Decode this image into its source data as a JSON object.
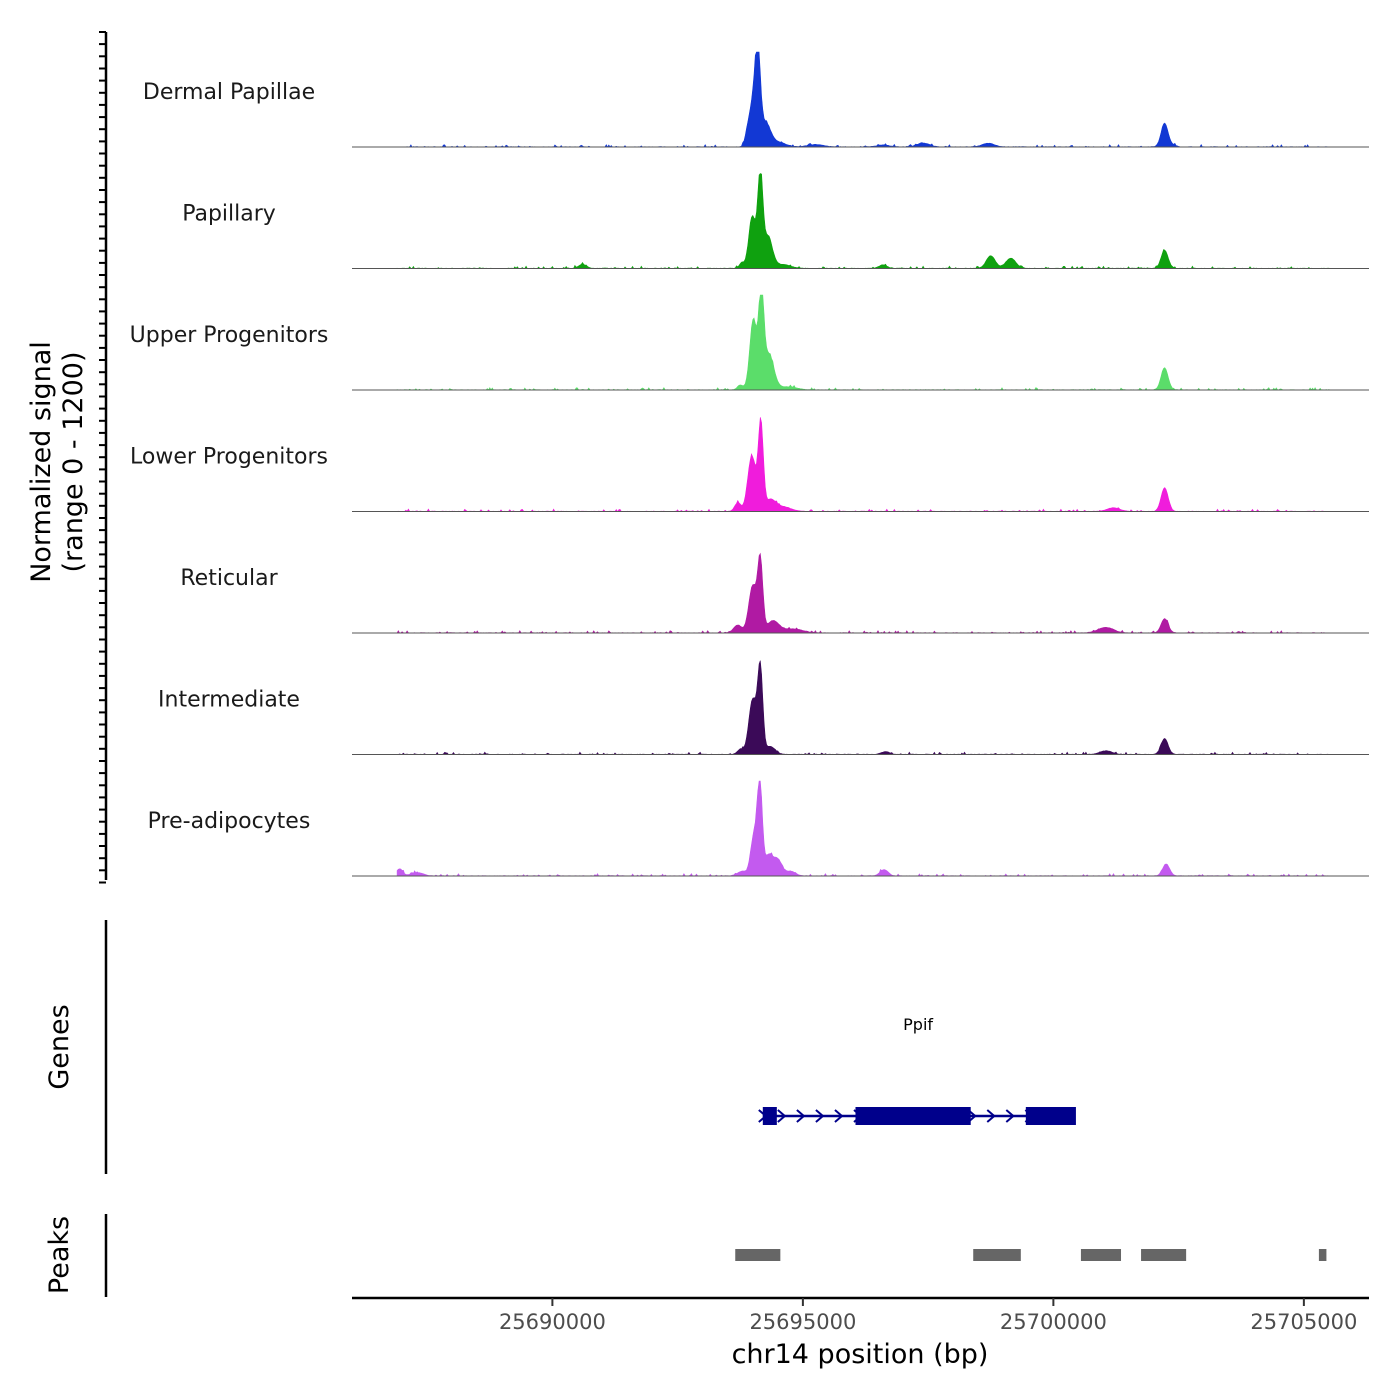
{
  "chart_data": {
    "type": "area",
    "title": "",
    "region": {
      "chrom": "chr14",
      "start": 25686000,
      "end": 25706300
    },
    "ylabel": "Normalized signal",
    "ylabel_range": "(range 0 - 1200)",
    "ylim": [
      0,
      1200
    ],
    "xlabel": "chr14 position (bp)",
    "x_ticks": [
      25690000,
      25695000,
      25700000,
      25705000
    ],
    "x_tick_labels": [
      "25690000",
      "25695000",
      "25700000",
      "25705000"
    ],
    "genes_label": "Genes",
    "peaks_label": "Peaks",
    "tracks": [
      {
        "name": "Dermal Papillae",
        "color": "#1238d4",
        "peaks": [
          [
            25693880,
            65,
            40
          ],
          [
            25694000,
            560,
            80
          ],
          [
            25694100,
            1080,
            50
          ],
          [
            25694250,
            300,
            100
          ],
          [
            25694500,
            60,
            150
          ],
          [
            25695250,
            30,
            150
          ],
          [
            25696600,
            25,
            120
          ],
          [
            25697400,
            50,
            120
          ],
          [
            25698700,
            45,
            120
          ],
          [
            25702220,
            300,
            70
          ],
          [
            25702400,
            20,
            60
          ]
        ]
      },
      {
        "name": "Papillary",
        "color": "#0fa10f",
        "peaks": [
          [
            25690600,
            50,
            80
          ],
          [
            25693780,
            70,
            50
          ],
          [
            25693990,
            660,
            70
          ],
          [
            25694150,
            1150,
            50
          ],
          [
            25694300,
            400,
            90
          ],
          [
            25694600,
            50,
            150
          ],
          [
            25696600,
            45,
            80
          ],
          [
            25698750,
            160,
            90
          ],
          [
            25699150,
            130,
            100
          ],
          [
            25702220,
            230,
            70
          ]
        ]
      },
      {
        "name": "Upper Progenitors",
        "color": "#5bdd6a",
        "peaks": [
          [
            25693750,
            60,
            60
          ],
          [
            25694010,
            890,
            70
          ],
          [
            25694170,
            1200,
            50
          ],
          [
            25694320,
            450,
            100
          ],
          [
            25694700,
            40,
            180
          ],
          [
            25702220,
            280,
            70
          ]
        ]
      },
      {
        "name": "Lower Progenitors",
        "color": "#f01cdc",
        "peaks": [
          [
            25693700,
            110,
            60
          ],
          [
            25693980,
            700,
            80
          ],
          [
            25694160,
            1100,
            50
          ],
          [
            25694350,
            140,
            100
          ],
          [
            25694600,
            60,
            150
          ],
          [
            25701200,
            45,
            120
          ],
          [
            25702220,
            300,
            70
          ]
        ]
      },
      {
        "name": "Reticular",
        "color": "#b01aa3",
        "peaks": [
          [
            25693700,
            100,
            80
          ],
          [
            25694000,
            600,
            80
          ],
          [
            25694150,
            880,
            50
          ],
          [
            25694400,
            150,
            120
          ],
          [
            25694800,
            50,
            200
          ],
          [
            25701050,
            70,
            150
          ],
          [
            25702220,
            180,
            70
          ]
        ]
      },
      {
        "name": "Intermediate",
        "color": "#3b0a58",
        "peaks": [
          [
            25693750,
            60,
            60
          ],
          [
            25694000,
            700,
            80
          ],
          [
            25694150,
            1050,
            50
          ],
          [
            25694350,
            100,
            100
          ],
          [
            25696650,
            35,
            80
          ],
          [
            25701050,
            45,
            120
          ],
          [
            25702220,
            200,
            70
          ]
        ]
      },
      {
        "name": "Pre-adipocytes",
        "color": "#c35aef",
        "peaks": [
          [
            25686950,
            90,
            60
          ],
          [
            25687300,
            40,
            120
          ],
          [
            25693800,
            60,
            100
          ],
          [
            25694020,
            500,
            60
          ],
          [
            25694140,
            1180,
            50
          ],
          [
            25694320,
            260,
            80
          ],
          [
            25694500,
            200,
            80
          ],
          [
            25694750,
            60,
            100
          ],
          [
            25696620,
            80,
            80
          ],
          [
            25702250,
            150,
            70
          ]
        ]
      }
    ],
    "gene": {
      "name": "Ppif",
      "strand": "+",
      "start": 25694200,
      "end": 25700400,
      "exons": [
        [
          25694200,
          25694480
        ],
        [
          25696050,
          25698350
        ],
        [
          25699450,
          25700450
        ]
      ],
      "color": "#00008b"
    },
    "peaks_track": {
      "color": "#666666",
      "intervals": [
        [
          25693650,
          25694550
        ],
        [
          25698400,
          25699350
        ],
        [
          25700550,
          25701350
        ],
        [
          25701750,
          25702650
        ],
        [
          25705300,
          25705450
        ]
      ]
    }
  }
}
